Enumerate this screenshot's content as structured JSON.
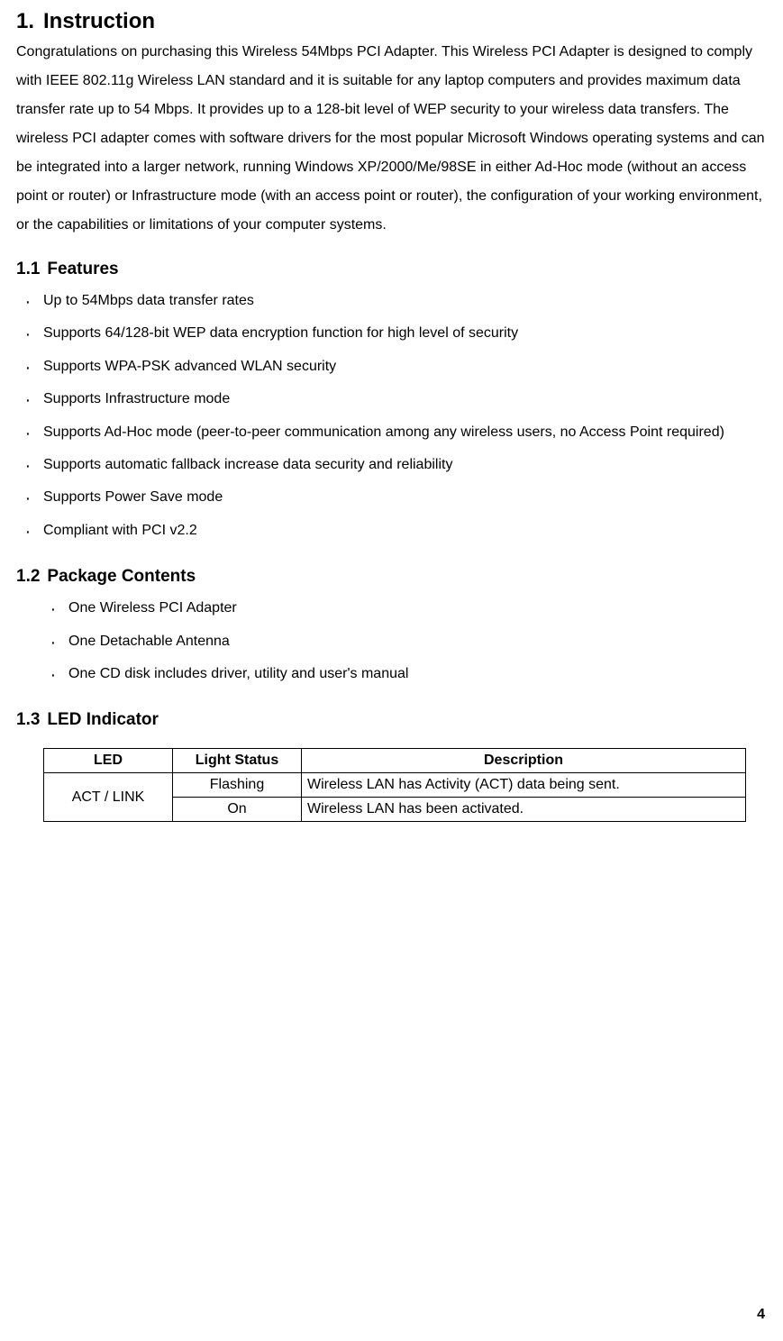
{
  "title": {
    "number": "1.",
    "text": "Instruction"
  },
  "intro": "Congratulations on purchasing this Wireless 54Mbps PCI Adapter. This Wireless PCI Adapter is designed to comply with IEEE 802.11g Wireless LAN standard and it is suitable for any laptop computers and provides maximum data transfer rate up to 54 Mbps. It provides up to a 128-bit level of WEP security to your wireless data transfers. The wireless PCI adapter comes with software drivers for the most popular Microsoft Windows operating systems and can be integrated into a larger network, running Windows XP/2000/Me/98SE in either Ad-Hoc mode (without an access point or router) or Infrastructure mode (with an access point or router), the configuration of your working environment, or the capabilities or limitations of your computer systems.",
  "sections": {
    "features": {
      "number": "1.1",
      "title": "Features",
      "items": [
        "Up to 54Mbps data transfer rates",
        "Supports 64/128-bit WEP data encryption function for high level of security",
        "Supports WPA-PSK advanced WLAN security",
        "Supports Infrastructure mode",
        "Supports Ad-Hoc mode (peer-to-peer communication among any wireless users, no Access Point required)",
        "Supports automatic fallback increase data security and reliability",
        "Supports Power Save mode",
        "Compliant with PCI v2.2"
      ]
    },
    "package": {
      "number": "1.2",
      "title": "Package Contents",
      "items": [
        "One Wireless PCI Adapter",
        "One Detachable Antenna",
        "One CD disk includes driver, utility and user's manual"
      ]
    },
    "led": {
      "number": "1.3",
      "title": "LED Indicator",
      "table": {
        "headers": {
          "led": "LED",
          "status": "Light Status",
          "desc": "Description"
        },
        "rows": [
          {
            "led": "ACT / LINK",
            "status": "Flashing",
            "desc": "Wireless LAN has Activity (ACT) data being sent."
          },
          {
            "led": "",
            "status": "On",
            "desc": "Wireless LAN has been activated."
          }
        ],
        "led_rowspan": 2,
        "border_color": "#000000",
        "font_size": 16
      }
    }
  },
  "page_number": "4"
}
